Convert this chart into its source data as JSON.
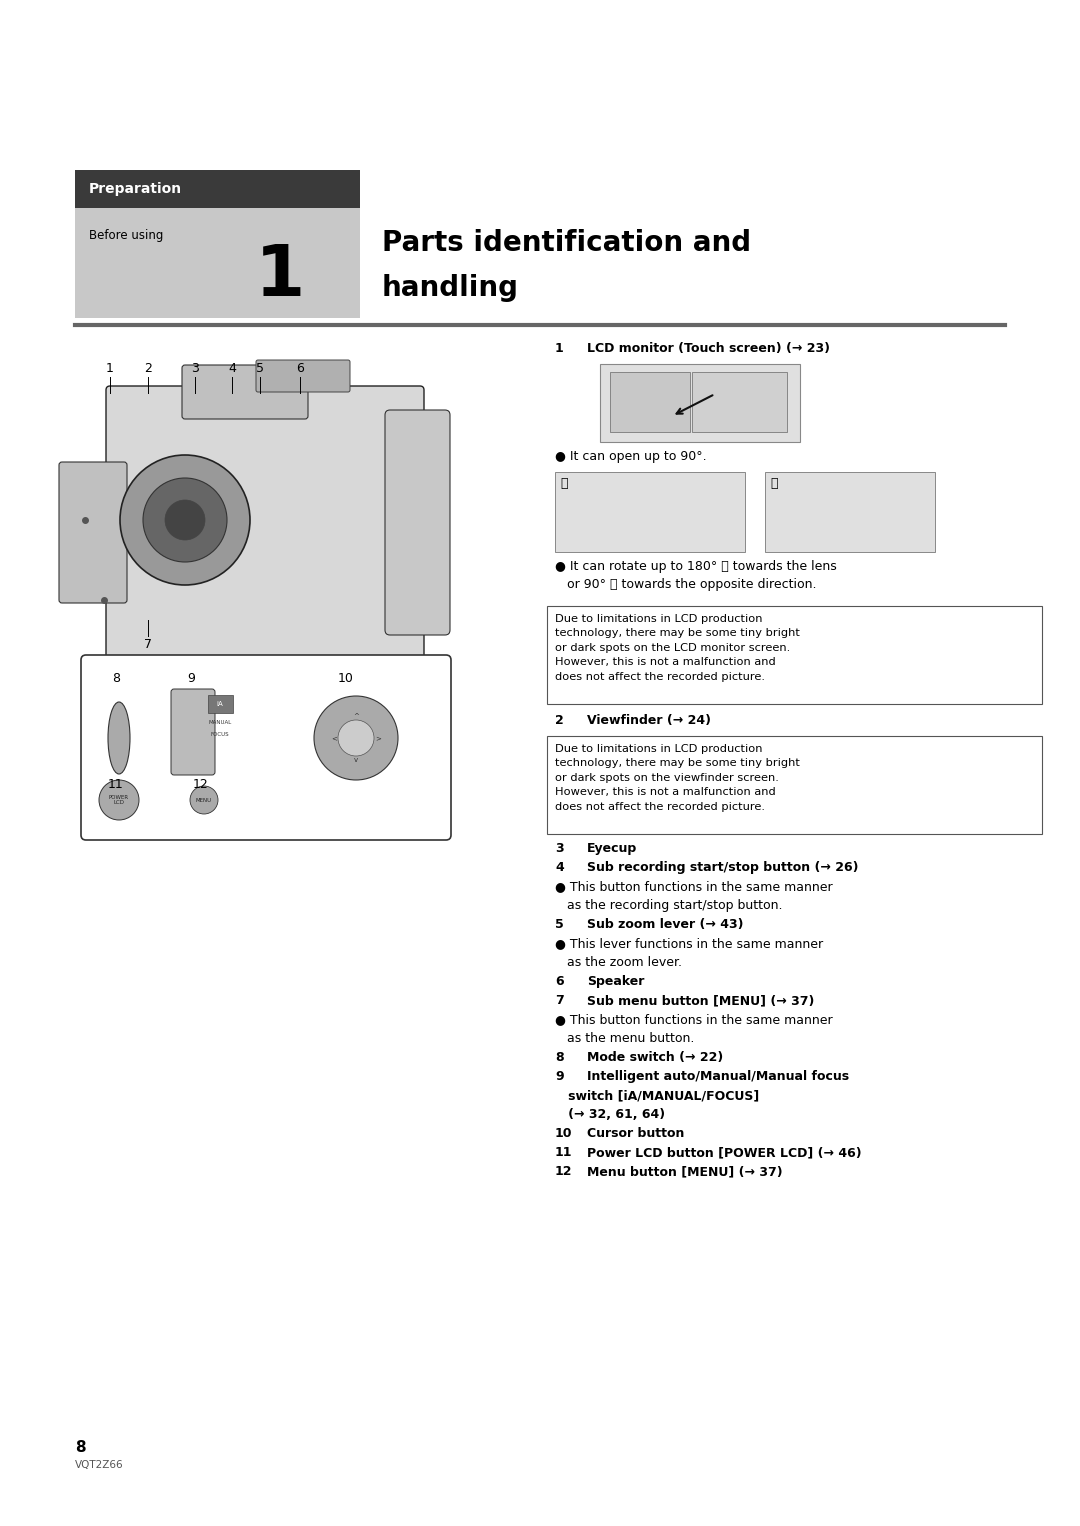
{
  "bg_color": "#ffffff",
  "page_width": 10.8,
  "page_height": 15.26,
  "dpi": 100,
  "header": {
    "prep_box_color": "#3a3a3a",
    "prep_box_text": "Preparation",
    "prep_box_text_color": "#ffffff",
    "sub_box_color": "#c8c8c8",
    "before_using_text": "Before using",
    "chapter_num": "1",
    "title_line1": "Parts identification and",
    "title_line2": "handling",
    "separator_line_color": "#666666"
  },
  "notice_box1_text": "Due to limitations in LCD production\ntechnology, there may be some tiny bright\nor dark spots on the LCD monitor screen.\nHowever, this is not a malfunction and\ndoes not affect the recorded picture.",
  "notice_box2_text": "Due to limitations in LCD production\ntechnology, there may be some tiny bright\nor dark spots on the viewfinder screen.\nHowever, this is not a malfunction and\ndoes not affect the recorded picture.",
  "page_num": "8",
  "page_code": "VQT2Z66"
}
